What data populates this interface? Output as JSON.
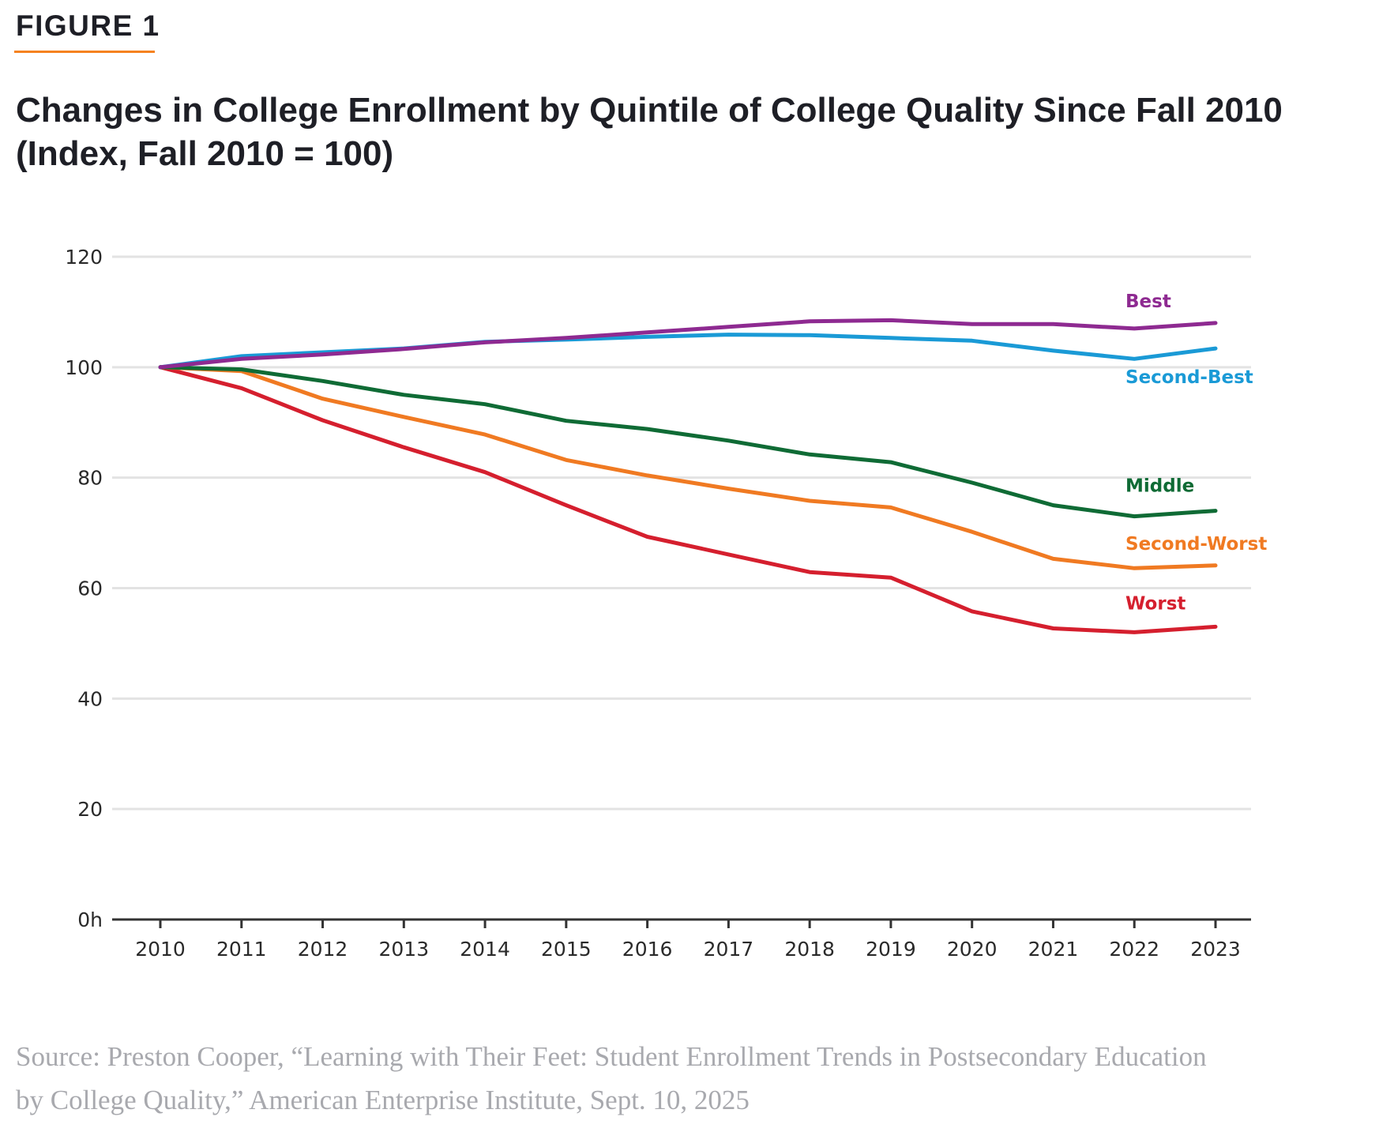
{
  "figure_label": "FIGURE 1",
  "accent_color": "#f58220",
  "title_line1": "Changes in College Enrollment by Quintile of College Quality Since Fall 2010",
  "title_line2": "(Index, Fall 2010 = 100)",
  "source_line1": "Source: Preston Cooper, “Learning with Their Feet: Student Enrollment Trends in Postsecondary Education",
  "source_line2": "by College Quality,” American Enterprise Institute, Sept. 10, 2025",
  "chart_data": {
    "type": "line",
    "title": "Changes in College Enrollment by Quintile of College Quality Since Fall 2010 (Index, Fall 2010 = 100)",
    "xlabel": "",
    "ylabel": "",
    "x": [
      "2010",
      "2011",
      "2012",
      "2013",
      "2014",
      "2015",
      "2016",
      "2017",
      "2018",
      "2019",
      "2020",
      "2021",
      "2022",
      "2023"
    ],
    "ylim": [
      0,
      120
    ],
    "yticks": [
      0,
      20,
      40,
      60,
      80,
      100,
      120
    ],
    "ytick_labels": [
      "0h",
      "20",
      "40",
      "60",
      "80",
      "100",
      "120"
    ],
    "grid": true,
    "legend": "inline labels at right end of lines",
    "series": [
      {
        "name": "Best",
        "color": "#8e2a91",
        "values": [
          100,
          101.5,
          102.3,
          103.3,
          104.5,
          105.3,
          106.3,
          107.3,
          108.3,
          108.5,
          107.8,
          107.8,
          107.0,
          108.0
        ]
      },
      {
        "name": "Second-Best",
        "color": "#1a9ad6",
        "values": [
          100,
          102.0,
          102.7,
          103.4,
          104.6,
          105.0,
          105.5,
          105.9,
          105.8,
          105.3,
          104.8,
          103.0,
          101.5,
          103.4
        ]
      },
      {
        "name": "Middle",
        "color": "#0f6b35",
        "values": [
          100,
          99.6,
          97.5,
          95.0,
          93.3,
          90.3,
          88.8,
          86.7,
          84.2,
          82.8,
          79.1,
          75.0,
          73.0,
          74.0
        ]
      },
      {
        "name": "Second-Worst",
        "color": "#f07a22",
        "values": [
          100,
          99.3,
          94.3,
          91.0,
          87.8,
          83.2,
          80.4,
          78.0,
          75.8,
          74.6,
          70.2,
          65.3,
          63.6,
          64.1
        ]
      },
      {
        "name": "Worst",
        "color": "#d51f2e",
        "values": [
          100,
          96.2,
          90.4,
          85.5,
          81.0,
          75.0,
          69.3,
          66.1,
          62.9,
          61.9,
          55.8,
          52.7,
          52.0,
          53.0
        ]
      }
    ]
  }
}
